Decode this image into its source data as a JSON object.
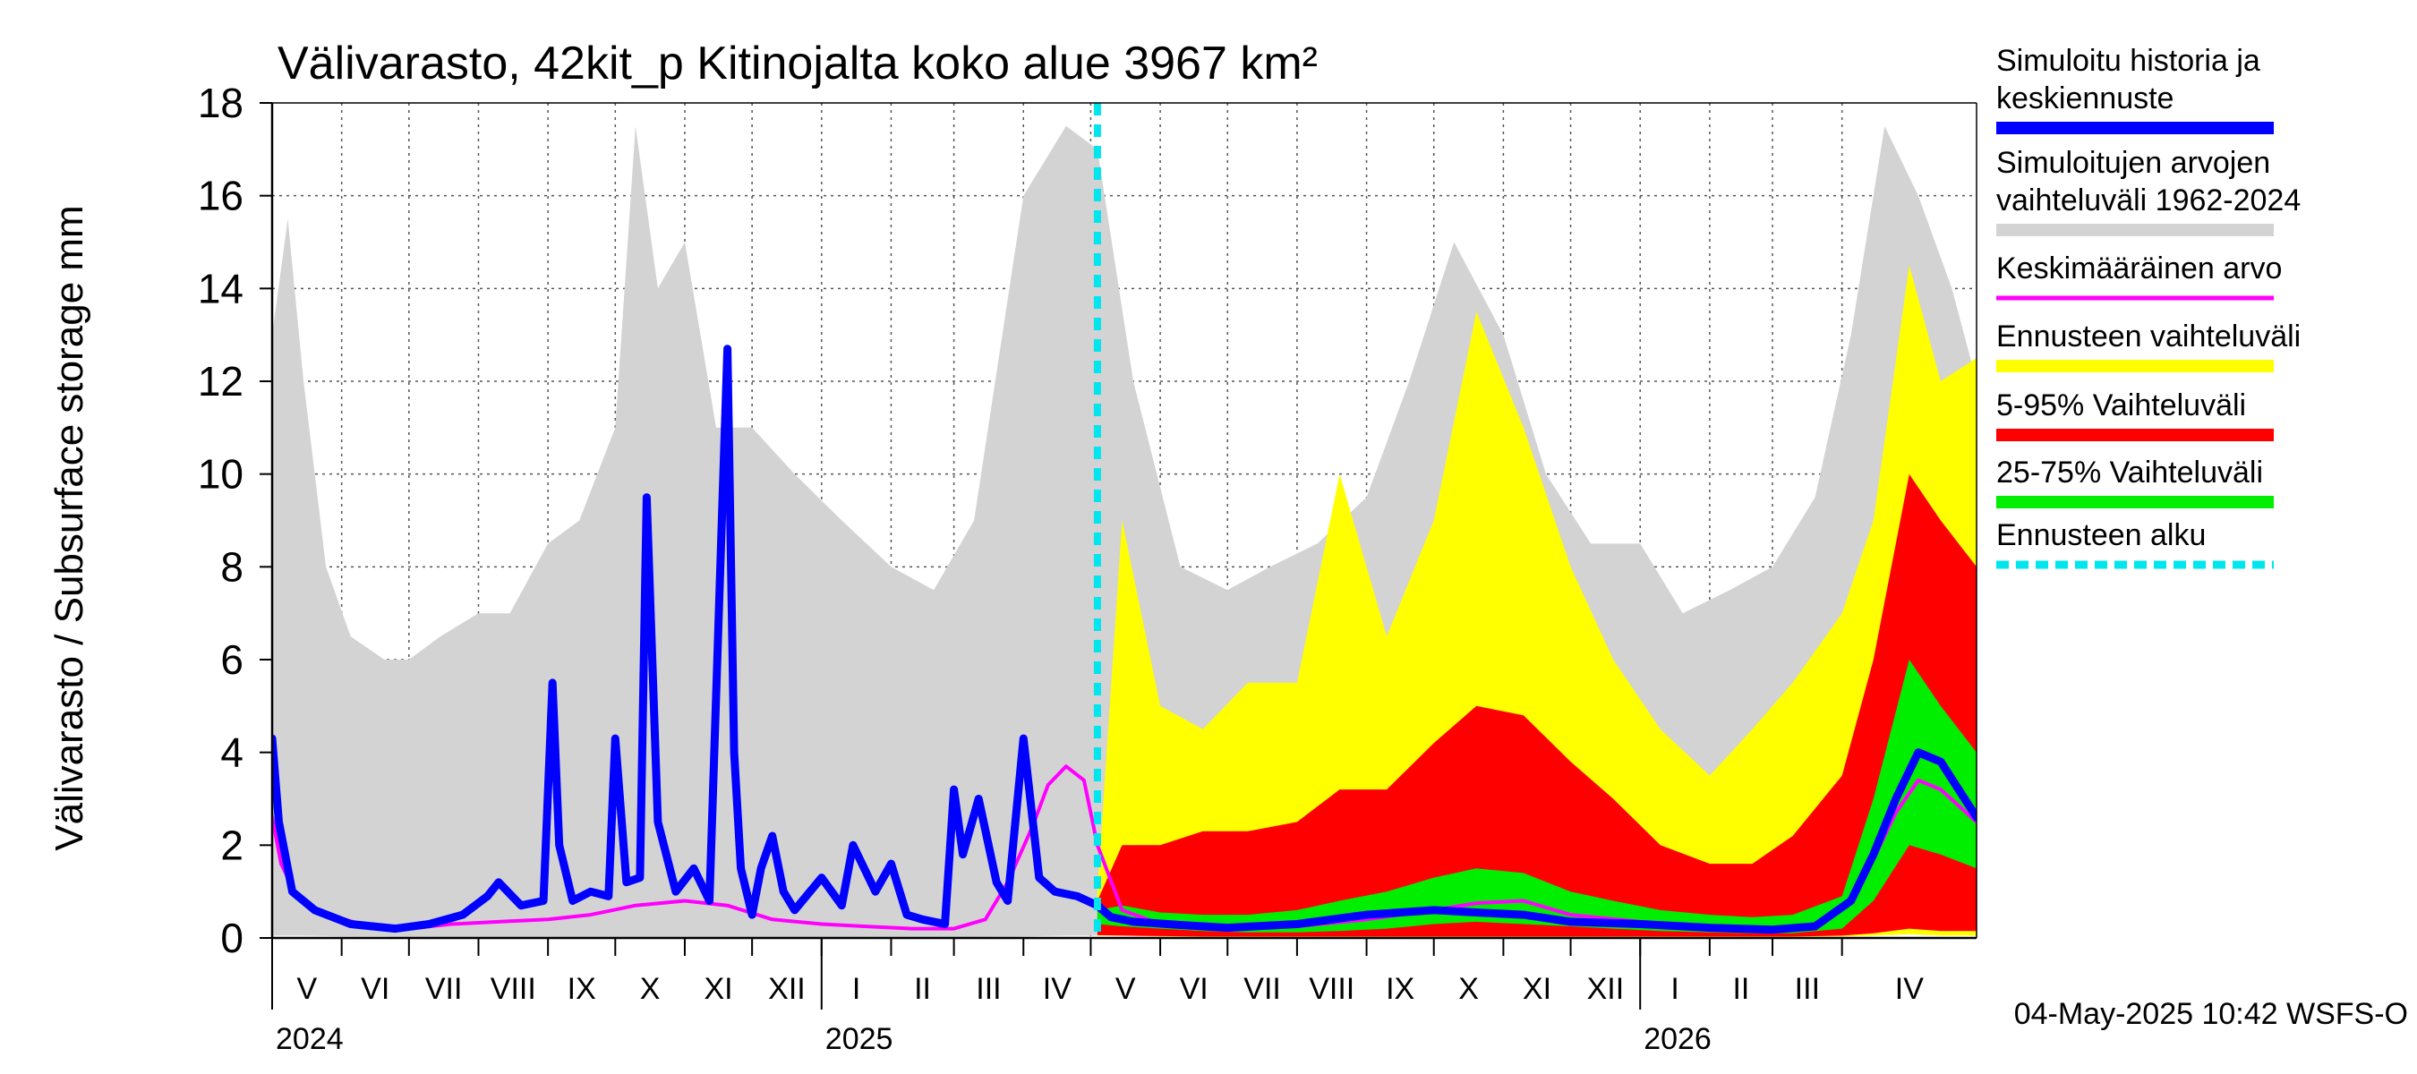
{
  "chart_data": {
    "type": "area",
    "title": "Välivarasto, 42kit_p Kitinojalta koko alue 3967 km²",
    "ylabel": "Välivarasto / Subsurface storage  mm",
    "ylim": [
      0,
      18
    ],
    "yticks": [
      0,
      2,
      4,
      6,
      8,
      10,
      12,
      14,
      16,
      18
    ],
    "xlim": [
      "2024-05-01",
      "2026-05-31"
    ],
    "forecast_start": "2025-05-04",
    "timestamp": "04-May-2025 10:42 WSFS-O",
    "grid": true,
    "legend_position": "right",
    "months": [
      {
        "label": "V",
        "start": "2024-05-01"
      },
      {
        "label": "VI",
        "start": "2024-06-01"
      },
      {
        "label": "VII",
        "start": "2024-07-01"
      },
      {
        "label": "VIII",
        "start": "2024-08-01"
      },
      {
        "label": "IX",
        "start": "2024-09-01"
      },
      {
        "label": "X",
        "start": "2024-10-01"
      },
      {
        "label": "XI",
        "start": "2024-11-01"
      },
      {
        "label": "XII",
        "start": "2024-12-01"
      },
      {
        "label": "I",
        "start": "2025-01-01"
      },
      {
        "label": "II",
        "start": "2025-02-01"
      },
      {
        "label": "III",
        "start": "2025-03-01"
      },
      {
        "label": "IV",
        "start": "2025-04-01"
      },
      {
        "label": "V",
        "start": "2025-05-01"
      },
      {
        "label": "VI",
        "start": "2025-06-01"
      },
      {
        "label": "VII",
        "start": "2025-07-01"
      },
      {
        "label": "VIII",
        "start": "2025-08-01"
      },
      {
        "label": "IX",
        "start": "2025-09-01"
      },
      {
        "label": "X",
        "start": "2025-10-01"
      },
      {
        "label": "XI",
        "start": "2025-11-01"
      },
      {
        "label": "XII",
        "start": "2025-12-01"
      },
      {
        "label": "I",
        "start": "2026-01-01"
      },
      {
        "label": "II",
        "start": "2026-02-01"
      },
      {
        "label": "III",
        "start": "2026-03-01"
      },
      {
        "label": "IV",
        "start": "2026-04-01"
      }
    ],
    "years": [
      {
        "label": "2024",
        "date": "2024-05-01"
      },
      {
        "label": "2025",
        "date": "2025-01-01"
      },
      {
        "label": "2026",
        "date": "2026-01-01"
      }
    ],
    "legend": [
      {
        "text": [
          "Simuloitu historia ja",
          "keskiennuste"
        ],
        "color": "#0000ff",
        "style": "solid"
      },
      {
        "text": [
          "Simuloitujen arvojen",
          "vaihteluväli 1962-2024"
        ],
        "color": "#d3d3d3",
        "style": "solid"
      },
      {
        "text": [
          "Keskimääräinen arvo"
        ],
        "color": "#ff00ff",
        "style": "thin"
      },
      {
        "text": [
          "Ennusteen vaihteluväli"
        ],
        "color": "#ffff00",
        "style": "solid"
      },
      {
        "text": [
          "5-95% Vaihteluväli"
        ],
        "color": "#ff0000",
        "style": "solid"
      },
      {
        "text": [
          "25-75% Vaihteluväli"
        ],
        "color": "#00ee00",
        "style": "solid"
      },
      {
        "text": [
          "Ennusteen alku"
        ],
        "color": "#00e5ee",
        "style": "dashed"
      }
    ],
    "series": [
      {
        "name": "Simuloitujen arvojen vaihteluväli 1962-2024",
        "kind": "band",
        "color": "#d3d3d3",
        "x": [
          "2024-05-01",
          "2024-05-08",
          "2024-05-15",
          "2024-05-25",
          "2024-06-05",
          "2024-06-20",
          "2024-07-01",
          "2024-07-15",
          "2024-08-01",
          "2024-08-15",
          "2024-09-01",
          "2024-09-15",
          "2024-10-01",
          "2024-10-10",
          "2024-10-20",
          "2024-11-01",
          "2024-11-15",
          "2024-12-01",
          "2024-12-20",
          "2025-01-10",
          "2025-02-01",
          "2025-02-20",
          "2025-03-10",
          "2025-04-01",
          "2025-04-20",
          "2025-05-04",
          "2025-05-20",
          "2025-06-10",
          "2025-07-01",
          "2025-07-20",
          "2025-08-10",
          "2025-09-01",
          "2025-09-20",
          "2025-10-10",
          "2025-11-01",
          "2025-11-20",
          "2025-12-10",
          "2026-01-01",
          "2026-01-20",
          "2026-02-10",
          "2026-03-01",
          "2026-03-20",
          "2026-04-05",
          "2026-04-20",
          "2026-05-05",
          "2026-05-20",
          "2026-05-31"
        ],
        "lower": [
          0.05,
          0.05,
          0.05,
          0.04,
          0.03,
          0.03,
          0.02,
          0.02,
          0.02,
          0.02,
          0.02,
          0.02,
          0.02,
          0.02,
          0.02,
          0.02,
          0.02,
          0.02,
          0.02,
          0.02,
          0.02,
          0.02,
          0.02,
          0.03,
          0.05,
          0.05,
          0.05,
          0.03,
          0.02,
          0.02,
          0.02,
          0.02,
          0.02,
          0.02,
          0.02,
          0.02,
          0.02,
          0.02,
          0.02,
          0.02,
          0.02,
          0.03,
          0.05,
          0.08,
          0.1,
          0.08,
          0.05
        ],
        "upper": [
          13.0,
          15.5,
          12.0,
          8.0,
          6.5,
          6.0,
          6.0,
          6.5,
          7.0,
          7.0,
          8.5,
          9.0,
          11.0,
          17.5,
          14.0,
          15.0,
          11.0,
          11.0,
          10.0,
          9.0,
          8.0,
          7.5,
          9.0,
          16.0,
          17.5,
          17.0,
          12.0,
          8.0,
          7.5,
          8.0,
          8.5,
          9.5,
          12.0,
          15.0,
          13.0,
          10.0,
          8.5,
          8.5,
          7.0,
          7.5,
          8.0,
          9.5,
          13.0,
          17.5,
          16.0,
          14.0,
          12.0
        ]
      },
      {
        "name": "Ennusteen vaihteluväli",
        "kind": "band",
        "color": "#ffff00",
        "x": [
          "2025-05-04",
          "2025-05-15",
          "2025-06-01",
          "2025-06-20",
          "2025-07-10",
          "2025-08-01",
          "2025-08-20",
          "2025-09-10",
          "2025-10-01",
          "2025-10-20",
          "2025-11-10",
          "2025-12-01",
          "2025-12-20",
          "2026-01-10",
          "2026-02-01",
          "2026-02-20",
          "2026-03-10",
          "2026-04-01",
          "2026-04-15",
          "2026-05-01",
          "2026-05-15",
          "2026-05-31"
        ],
        "lower": [
          0.05,
          0.05,
          0.03,
          0.02,
          0.02,
          0.02,
          0.02,
          0.02,
          0.02,
          0.02,
          0.02,
          0.02,
          0.02,
          0.02,
          0.02,
          0.02,
          0.02,
          0.03,
          0.05,
          0.08,
          0.05,
          0.05
        ],
        "upper": [
          1.0,
          9.0,
          5.0,
          4.5,
          5.5,
          5.5,
          10.0,
          6.5,
          9.0,
          13.5,
          11.0,
          8.0,
          6.0,
          4.5,
          3.5,
          4.5,
          5.5,
          7.0,
          9.0,
          14.5,
          12.0,
          12.5
        ]
      },
      {
        "name": "5-95% Vaihteluväli",
        "kind": "band",
        "color": "#ff0000",
        "x": [
          "2025-05-04",
          "2025-05-15",
          "2025-06-01",
          "2025-06-20",
          "2025-07-10",
          "2025-08-01",
          "2025-08-20",
          "2025-09-10",
          "2025-10-01",
          "2025-10-20",
          "2025-11-10",
          "2025-12-01",
          "2025-12-20",
          "2026-01-10",
          "2026-02-01",
          "2026-02-20",
          "2026-03-10",
          "2026-04-01",
          "2026-04-15",
          "2026-05-01",
          "2026-05-15",
          "2026-05-31"
        ],
        "lower": [
          0.06,
          0.05,
          0.04,
          0.03,
          0.03,
          0.03,
          0.03,
          0.03,
          0.03,
          0.03,
          0.03,
          0.03,
          0.03,
          0.03,
          0.03,
          0.03,
          0.03,
          0.05,
          0.1,
          0.2,
          0.15,
          0.15
        ],
        "upper": [
          0.8,
          2.0,
          2.0,
          2.3,
          2.3,
          2.5,
          3.2,
          3.2,
          4.2,
          5.0,
          4.8,
          3.8,
          3.0,
          2.0,
          1.6,
          1.6,
          2.2,
          3.5,
          6.0,
          10.0,
          9.0,
          8.0
        ]
      },
      {
        "name": "25-75% Vaihteluväli",
        "kind": "band",
        "color": "#00ee00",
        "x": [
          "2025-05-04",
          "2025-05-15",
          "2025-06-01",
          "2025-06-20",
          "2025-07-10",
          "2025-08-01",
          "2025-08-20",
          "2025-09-10",
          "2025-10-01",
          "2025-10-20",
          "2025-11-10",
          "2025-12-01",
          "2025-12-20",
          "2026-01-10",
          "2026-02-01",
          "2026-02-20",
          "2026-03-10",
          "2026-04-01",
          "2026-04-15",
          "2026-05-01",
          "2026-05-15",
          "2026-05-31"
        ],
        "lower": [
          0.3,
          0.25,
          0.2,
          0.15,
          0.12,
          0.12,
          0.15,
          0.2,
          0.3,
          0.35,
          0.3,
          0.25,
          0.2,
          0.15,
          0.12,
          0.1,
          0.1,
          0.2,
          0.8,
          2.0,
          1.8,
          1.5
        ],
        "upper": [
          0.6,
          0.7,
          0.55,
          0.5,
          0.5,
          0.6,
          0.8,
          1.0,
          1.3,
          1.5,
          1.4,
          1.0,
          0.8,
          0.6,
          0.5,
          0.45,
          0.5,
          0.9,
          3.0,
          6.0,
          5.0,
          4.0
        ]
      },
      {
        "name": "Keskimääräinen arvo",
        "kind": "line",
        "color": "#ff00ff",
        "x": [
          "2024-05-01",
          "2024-05-05",
          "2024-05-12",
          "2024-05-25",
          "2024-06-10",
          "2024-07-01",
          "2024-07-20",
          "2024-08-10",
          "2024-09-01",
          "2024-09-20",
          "2024-10-10",
          "2024-11-01",
          "2024-11-20",
          "2024-12-10",
          "2025-01-01",
          "2025-01-20",
          "2025-02-10",
          "2025-03-01",
          "2025-03-15",
          "2025-03-25",
          "2025-04-05",
          "2025-04-12",
          "2025-04-20",
          "2025-04-28",
          "2025-05-04",
          "2025-05-15",
          "2025-06-01",
          "2025-07-01",
          "2025-08-01",
          "2025-09-01",
          "2025-10-01",
          "2025-10-20",
          "2025-11-10",
          "2025-12-01",
          "2026-01-01",
          "2026-02-01",
          "2026-03-01",
          "2026-03-20",
          "2026-04-05",
          "2026-04-15",
          "2026-04-25",
          "2026-05-05",
          "2026-05-15",
          "2026-05-31"
        ],
        "y": [
          2.6,
          1.6,
          0.9,
          0.5,
          0.3,
          0.2,
          0.3,
          0.35,
          0.4,
          0.5,
          0.7,
          0.8,
          0.7,
          0.4,
          0.3,
          0.25,
          0.2,
          0.2,
          0.4,
          1.2,
          2.4,
          3.3,
          3.7,
          3.4,
          2.0,
          0.6,
          0.3,
          0.2,
          0.25,
          0.4,
          0.6,
          0.75,
          0.8,
          0.5,
          0.35,
          0.25,
          0.2,
          0.3,
          0.8,
          1.7,
          2.7,
          3.4,
          3.2,
          2.5
        ]
      },
      {
        "name": "Simuloitu historia ja keskiennuste",
        "kind": "line",
        "color": "#0000ff",
        "x": [
          "2024-05-01",
          "2024-05-04",
          "2024-05-10",
          "2024-05-20",
          "2024-06-05",
          "2024-06-25",
          "2024-07-10",
          "2024-07-25",
          "2024-08-05",
          "2024-08-10",
          "2024-08-20",
          "2024-08-30",
          "2024-09-03",
          "2024-09-06",
          "2024-09-12",
          "2024-09-20",
          "2024-09-28",
          "2024-10-01",
          "2024-10-06",
          "2024-10-12",
          "2024-10-15",
          "2024-10-20",
          "2024-10-28",
          "2024-11-05",
          "2024-11-12",
          "2024-11-20",
          "2024-11-23",
          "2024-11-26",
          "2024-12-01",
          "2024-12-05",
          "2024-12-10",
          "2024-12-15",
          "2024-12-20",
          "2025-01-01",
          "2025-01-10",
          "2025-01-15",
          "2025-01-25",
          "2025-02-01",
          "2025-02-08",
          "2025-02-15",
          "2025-02-25",
          "2025-03-01",
          "2025-03-05",
          "2025-03-12",
          "2025-03-20",
          "2025-03-25",
          "2025-04-01",
          "2025-04-08",
          "2025-04-15",
          "2025-04-25",
          "2025-05-04",
          "2025-05-10",
          "2025-05-20",
          "2025-06-10",
          "2025-07-01",
          "2025-08-01",
          "2025-09-01",
          "2025-10-01",
          "2025-10-20",
          "2025-11-10",
          "2025-12-01",
          "2026-01-01",
          "2026-02-01",
          "2026-03-01",
          "2026-03-20",
          "2026-04-05",
          "2026-04-15",
          "2026-04-25",
          "2026-05-05",
          "2026-05-15",
          "2026-05-31"
        ],
        "y": [
          4.3,
          2.5,
          1.0,
          0.6,
          0.3,
          0.2,
          0.3,
          0.5,
          0.9,
          1.2,
          0.7,
          0.8,
          5.5,
          2.0,
          0.8,
          1.0,
          0.9,
          4.3,
          1.2,
          1.3,
          9.5,
          2.5,
          1.0,
          1.5,
          0.8,
          12.7,
          4.0,
          1.5,
          0.5,
          1.5,
          2.2,
          1.0,
          0.6,
          1.3,
          0.7,
          2.0,
          1.0,
          1.6,
          0.5,
          0.4,
          0.3,
          3.2,
          1.8,
          3.0,
          1.2,
          0.8,
          4.3,
          1.3,
          1.0,
          0.9,
          0.7,
          0.45,
          0.35,
          0.28,
          0.22,
          0.3,
          0.5,
          0.6,
          0.55,
          0.5,
          0.35,
          0.3,
          0.22,
          0.18,
          0.25,
          0.8,
          1.8,
          3.0,
          4.0,
          3.8,
          2.6
        ]
      }
    ]
  }
}
